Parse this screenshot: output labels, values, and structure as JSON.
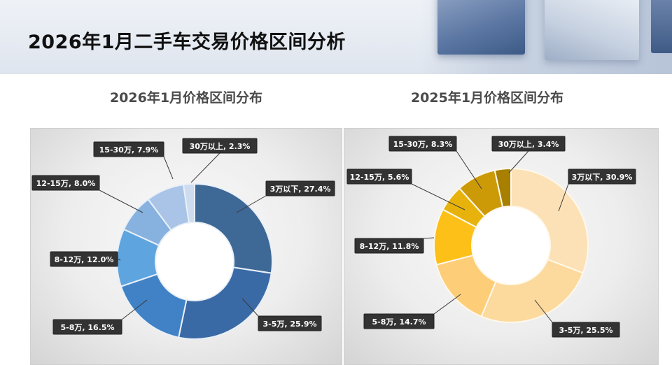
{
  "page": {
    "title": "2026年1月二手车交易价格区间分析"
  },
  "chart_data": [
    {
      "type": "pie",
      "donut": true,
      "title": "2026年1月价格区间分布",
      "slices": [
        {
          "label": "3万以下, 27.4%",
          "category": "3万以下",
          "value": 27.4,
          "color": "#3e6896"
        },
        {
          "label": "3-5万, 25.9%",
          "category": "3-5万",
          "value": 25.9,
          "color": "#3a6aa6"
        },
        {
          "label": "5-8万, 16.5%",
          "category": "5-8万",
          "value": 16.5,
          "color": "#4182c6"
        },
        {
          "label": "8-12万, 12.0%",
          "category": "8-12万",
          "value": 12.0,
          "color": "#5ea4de"
        },
        {
          "label": "12-15万, 8.0%",
          "category": "12-15万",
          "value": 8.0,
          "color": "#87b2e0"
        },
        {
          "label": "15-30万, 7.9%",
          "category": "15-30万",
          "value": 7.9,
          "color": "#a9c4e6"
        },
        {
          "label": "30万以上, 2.3%",
          "category": "30万以上",
          "value": 2.3,
          "color": "#cddcef"
        }
      ],
      "legend": "none"
    },
    {
      "type": "pie",
      "donut": true,
      "title": "2025年1月价格区间分布",
      "slices": [
        {
          "label": "3万以下, 30.9%",
          "category": "3万以下",
          "value": 30.9,
          "color": "#fbe1b5"
        },
        {
          "label": "3-5万, 25.5%",
          "category": "3-5万",
          "value": 25.5,
          "color": "#fcd99c"
        },
        {
          "label": "5-8万, 14.7%",
          "category": "5-8万",
          "value": 14.7,
          "color": "#fdcd78"
        },
        {
          "label": "8-12万, 11.8%",
          "category": "8-12万",
          "value": 11.8,
          "color": "#fdc018"
        },
        {
          "label": "12-15万, 5.6%",
          "category": "12-15万",
          "value": 5.6,
          "color": "#e7b20c"
        },
        {
          "label": "15-30万, 8.3%",
          "category": "15-30万",
          "value": 8.3,
          "color": "#cc9a06"
        },
        {
          "label": "30万以上, 3.4%",
          "category": "30万以上",
          "value": 3.4,
          "color": "#a97f00"
        }
      ],
      "legend": "none"
    }
  ]
}
